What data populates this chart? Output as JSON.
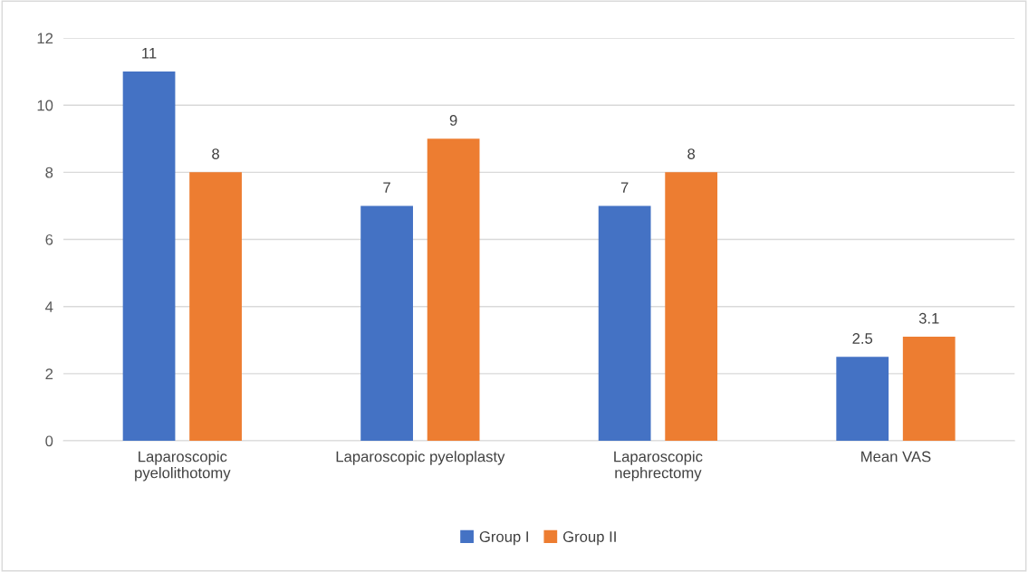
{
  "chart_data": {
    "type": "bar",
    "categories": [
      "Laparoscopic\npyelolithotomy",
      "Laparoscopic pyeloplasty",
      "Laparoscopic\nnephrectomy",
      "Mean VAS"
    ],
    "series": [
      {
        "name": "Group I",
        "color": "#4472c4",
        "values": [
          11,
          7,
          7,
          2.5
        ]
      },
      {
        "name": "Group II",
        "color": "#ed7d31",
        "values": [
          8,
          9,
          8,
          3.1
        ]
      }
    ],
    "ylim": [
      0,
      12
    ],
    "yticks": [
      0,
      2,
      4,
      6,
      8,
      10,
      12
    ],
    "grid": "y",
    "legend": "bottom",
    "data_labels": true
  }
}
